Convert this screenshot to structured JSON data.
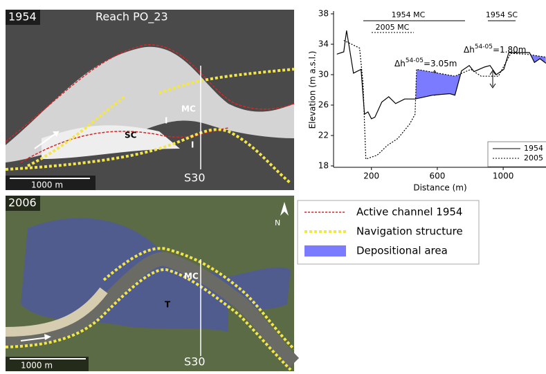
{
  "top_photo": {
    "year": "1954",
    "reach": "Reach PO_23",
    "labels": [
      "MC",
      "I",
      "SC",
      "I"
    ],
    "section": "S30",
    "scale": "1000 m"
  },
  "bottom_photo": {
    "year": "2006",
    "labels": [
      "MC",
      "T"
    ],
    "section": "S30",
    "scale": "1000 m",
    "north": "N"
  },
  "legend": {
    "items": [
      {
        "label": "Active channel 1954",
        "color": "#d62728"
      },
      {
        "label": "Navigation structure",
        "color": "#f2e64a"
      },
      {
        "label": "Depositional area",
        "color": "#7b7bff"
      }
    ]
  },
  "chart_data": {
    "type": "line",
    "x_label": "Distance (m)",
    "y_label": "Elevation (m a.s.l.)",
    "xlim": [
      -30,
      1260
    ],
    "xticks": [
      200,
      600,
      1000
    ],
    "ylim": [
      18,
      38
    ],
    "yticks": [
      18,
      22,
      26,
      30,
      34,
      38
    ],
    "fill_color": "#7b7bff",
    "annotations": [
      {
        "base": "Δh",
        "sup": "54-05",
        "rest": "=3.05m"
      },
      {
        "base": "Δh",
        "sup": "54-05",
        "rest": "=1.80m"
      }
    ],
    "reach_labels": [
      "1954 MC",
      "2005 MC",
      "1954 SC"
    ],
    "series": [
      {
        "name": "1954",
        "color": "#000000",
        "dash": "none",
        "x": [
          -10,
          32,
          49,
          91,
          137,
          158,
          179,
          200,
          221,
          263,
          305,
          347,
          402,
          465,
          571,
          676,
          707,
          747,
          794,
          823,
          886,
          920,
          958,
          1004,
          1034,
          1160,
          1190,
          1223,
          1260
        ],
        "values": [
          32.7,
          33.0,
          35.8,
          30.2,
          30.7,
          24.8,
          25.1,
          24.2,
          24.4,
          26.4,
          27.1,
          26.2,
          26.8,
          26.8,
          27.3,
          27.5,
          27.3,
          30.5,
          31.2,
          30.4,
          31.0,
          31.2,
          30.0,
          30.7,
          32.9,
          32.9,
          31.6,
          32.1,
          31.5
        ]
      },
      {
        "name": "2005",
        "color": "#000000",
        "dash": "2 2",
        "x": [
          32,
          128,
          149,
          166,
          234,
          297,
          360,
          432,
          465,
          474,
          579,
          707,
          804,
          866,
          971,
          1046,
          1139,
          1260
        ],
        "values": [
          34.5,
          33.5,
          28.9,
          18.9,
          19.4,
          20.7,
          21.6,
          23.5,
          24.8,
          30.7,
          30.3,
          29.8,
          30.7,
          29.8,
          29.8,
          32.8,
          32.7,
          32.3
        ]
      }
    ]
  }
}
